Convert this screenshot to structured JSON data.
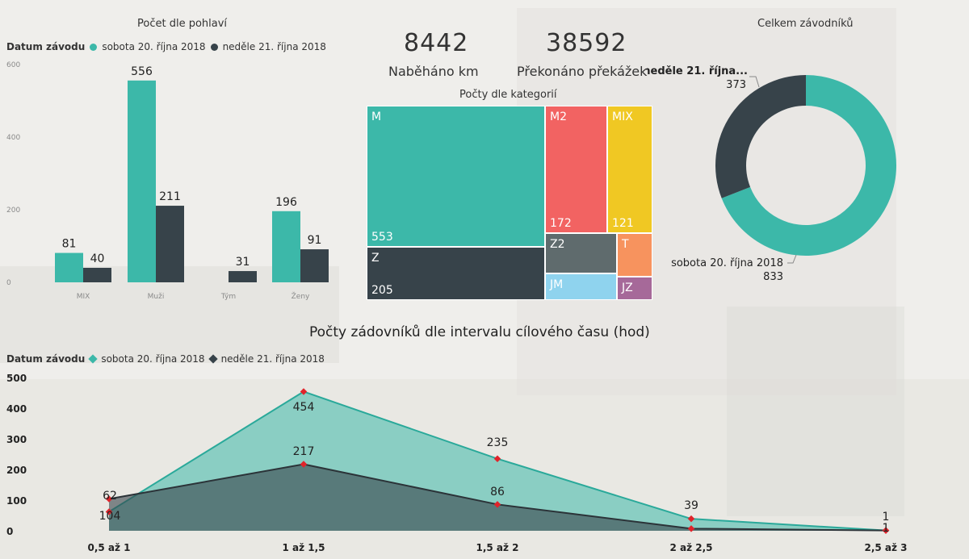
{
  "colors": {
    "teal": "#3cb8a9",
    "dark": "#37434a",
    "M2": "#f26362",
    "MIX": "#f0c823",
    "Z2": "#5f6b6d",
    "T": "#f7935e",
    "JM": "#8fd3ee",
    "JZ": "#a66999",
    "marker": "#e0242b"
  },
  "legend": {
    "title": "Datum závodu",
    "sat": "sobota 20. října 2018",
    "sun": "neděle 21. října 2018"
  },
  "kpis": [
    {
      "value": "8442",
      "label": "Naběháno km"
    },
    {
      "value": "38592",
      "label": "Překonáno překážek"
    }
  ],
  "chart_data": [
    {
      "type": "bar",
      "title": "Počet dle pohlaví",
      "categories": [
        "MIX",
        "Muži",
        "Tým",
        "Ženy"
      ],
      "series": [
        {
          "name": "sobota 20. října 2018",
          "values": [
            81,
            556,
            null,
            196
          ]
        },
        {
          "name": "neděle 21. října 2018",
          "values": [
            40,
            211,
            31,
            91
          ]
        }
      ],
      "yticks": [
        "0",
        "200",
        "400",
        "600"
      ],
      "ylim": [
        0,
        600
      ],
      "legend": "top"
    },
    {
      "type": "treemap",
      "title": "Počty dle kategorií",
      "labels": [
        "M",
        "Z",
        "M2",
        "MIX",
        "Z2",
        "T",
        "JM",
        "JZ"
      ],
      "values": [
        553,
        205,
        172,
        121,
        null,
        null,
        null,
        null
      ]
    },
    {
      "type": "pie",
      "title": "Celkem závodníků",
      "labels": [
        "sobota 20. října 2018",
        "neděle 21. října 2018"
      ],
      "label_texts": [
        "sobota 20. října 2018",
        "neděle 21. října..."
      ],
      "values": [
        833,
        373
      ]
    },
    {
      "type": "area",
      "title": "Počty zádovníků dle intervalu cílového času (hod)",
      "categories": [
        "0,5 až 1",
        "1 až 1,5",
        "1,5 až 2",
        "2 až 2,5",
        "2,5 až 3"
      ],
      "series": [
        {
          "name": "sobota 20. října 2018",
          "values": [
            62,
            454,
            235,
            39,
            1
          ]
        },
        {
          "name": "neděle 21. října 2018",
          "values": [
            104,
            217,
            86,
            7,
            1
          ]
        }
      ],
      "yticks": [
        "0",
        "100",
        "200",
        "300",
        "400",
        "500"
      ],
      "ylim": [
        0,
        500
      ],
      "legend": "top-left"
    }
  ]
}
